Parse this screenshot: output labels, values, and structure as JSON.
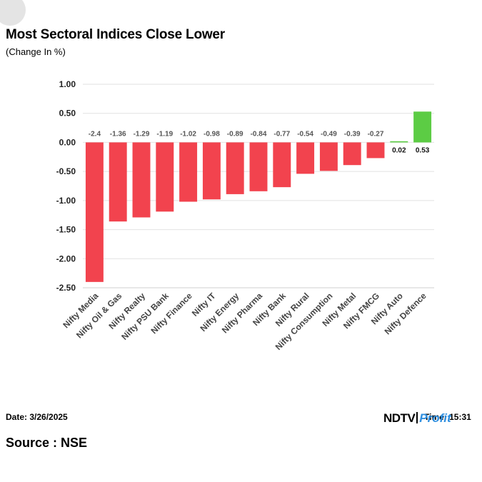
{
  "title": "Most Sectoral Indices Close Lower",
  "subtitle": "(Change In %)",
  "footer": {
    "date_label": "Date: 3/26/2025",
    "source_label": "Source : NSE",
    "time_label": "Time: 15:31"
  },
  "brand": {
    "ndtv": "NDTV",
    "profit": "Profit"
  },
  "colors": {
    "negative": "#f2434e",
    "positive": "#5ccc44",
    "grid": "#e2e2e2",
    "axis": "#cfcfcf"
  },
  "chart_data": {
    "type": "bar",
    "title": "Most Sectoral Indices Close Lower",
    "subtitle": "(Change In %)",
    "xlabel": "",
    "ylabel": "",
    "ylim": [
      -2.5,
      1.0
    ],
    "yticks": [
      "1.00",
      "0.50",
      "0.00",
      "-0.50",
      "-1.00",
      "-1.50",
      "-2.00",
      "-2.50"
    ],
    "grid": true,
    "legend": "none",
    "categories": [
      "Nifty Media",
      "Nifty Oil & Gas",
      "Nifty Realty",
      "Nifty PSU Bank",
      "Nifty Finance",
      "Nifty IT",
      "Nifty Energy",
      "Nifty Pharma",
      "Nifty Bank",
      "Nifty Rural",
      "Nifty Consumption",
      "Nifty Metal",
      "Nifty FMCG",
      "Nifty Auto",
      "Nifty Defence"
    ],
    "values": [
      -2.4,
      -1.36,
      -1.29,
      -1.19,
      -1.02,
      -0.98,
      -0.89,
      -0.84,
      -0.77,
      -0.54,
      -0.49,
      -0.39,
      -0.27,
      0.02,
      0.53
    ],
    "value_labels": [
      "-2.4",
      "-1.36",
      "-1.29",
      "-1.19",
      "-1.02",
      "-0.98",
      "-0.89",
      "-0.84",
      "-0.77",
      "-0.54",
      "-0.49",
      "-0.39",
      "-0.27",
      "0.02",
      "0.53"
    ]
  }
}
